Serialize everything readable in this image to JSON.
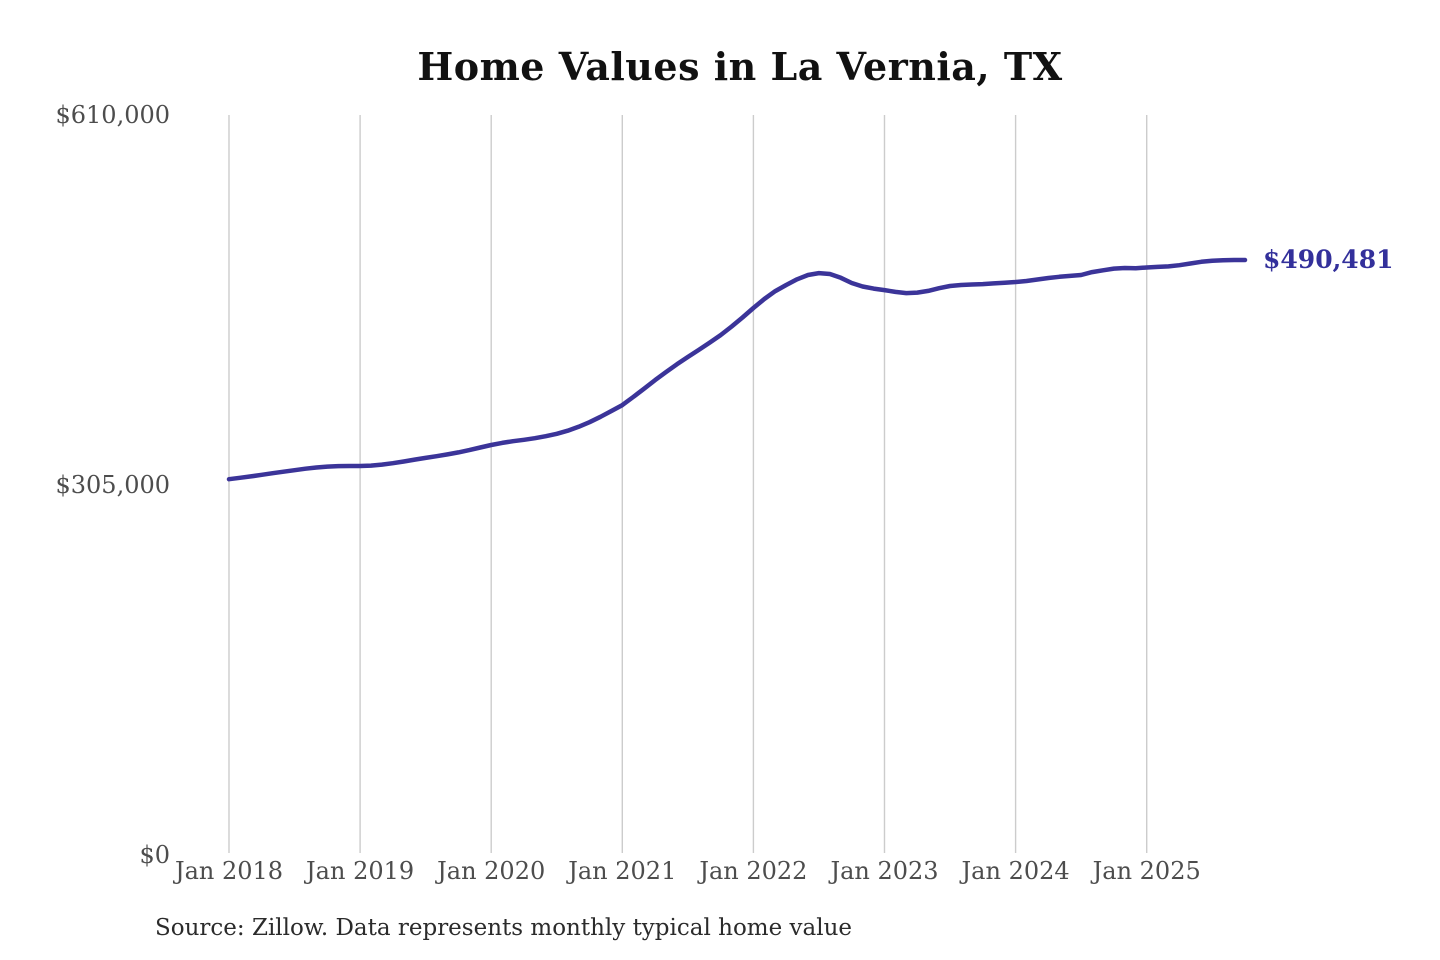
{
  "title": "Home Values in La Vernia, TX",
  "source": "Source: Zillow. Data represents monthly typical home value",
  "colors": {
    "line": "#3b3499",
    "value_label": "#33309b",
    "grid": "#cccccc",
    "axis_text": "#4d4d4d",
    "title_text": "#111111",
    "background": "#ffffff"
  },
  "chart_data": {
    "type": "line",
    "title": "Home Values in La Vernia, TX",
    "series_name": "Typical home value (monthly)",
    "end_label": "$490,481",
    "end_value": 490481,
    "ylim": [
      0,
      610000
    ],
    "grid": "vertical-only",
    "legend": "none",
    "y_tick_labels": [
      "$0",
      "$305,000",
      "$610,000"
    ],
    "y_tick_values": [
      0,
      305000,
      610000
    ],
    "x_tick_labels": [
      "Jan 2018",
      "Jan 2019",
      "Jan 2020",
      "Jan 2021",
      "Jan 2022",
      "Jan 2023",
      "Jan 2024",
      "Jan 2025"
    ],
    "x_tick_month_index": [
      0,
      12,
      24,
      36,
      48,
      60,
      72,
      84
    ],
    "x": [
      "2018-01",
      "2018-02",
      "2018-03",
      "2018-04",
      "2018-05",
      "2018-06",
      "2018-07",
      "2018-08",
      "2018-09",
      "2018-10",
      "2018-11",
      "2018-12",
      "2019-01",
      "2019-02",
      "2019-03",
      "2019-04",
      "2019-05",
      "2019-06",
      "2019-07",
      "2019-08",
      "2019-09",
      "2019-10",
      "2019-11",
      "2019-12",
      "2020-01",
      "2020-02",
      "2020-03",
      "2020-04",
      "2020-05",
      "2020-06",
      "2020-07",
      "2020-08",
      "2020-09",
      "2020-10",
      "2020-11",
      "2020-12",
      "2021-01",
      "2021-02",
      "2021-03",
      "2021-04",
      "2021-05",
      "2021-06",
      "2021-07",
      "2021-08",
      "2021-09",
      "2021-10",
      "2021-11",
      "2021-12",
      "2022-01",
      "2022-02",
      "2022-03",
      "2022-04",
      "2022-05",
      "2022-06",
      "2022-07",
      "2022-08",
      "2022-09",
      "2022-10",
      "2022-11",
      "2022-12",
      "2023-01",
      "2023-02",
      "2023-03",
      "2023-04",
      "2023-05",
      "2023-06",
      "2023-07",
      "2023-08",
      "2023-09",
      "2023-10",
      "2023-11",
      "2023-12",
      "2024-01",
      "2024-02",
      "2024-03",
      "2024-04",
      "2024-05",
      "2024-06",
      "2024-07",
      "2024-08",
      "2024-09",
      "2024-10",
      "2024-11",
      "2024-12",
      "2025-01",
      "2025-02",
      "2025-03",
      "2025-04",
      "2025-05",
      "2025-06",
      "2025-07",
      "2025-08",
      "2025-09",
      "2025-10"
    ],
    "values": [
      309800,
      310900,
      312100,
      313400,
      314700,
      316000,
      317200,
      318400,
      319400,
      320200,
      320600,
      320700,
      320700,
      321000,
      321800,
      323000,
      324400,
      325900,
      327300,
      328700,
      330200,
      331900,
      333800,
      335900,
      338000,
      339700,
      341100,
      342300,
      343600,
      345200,
      347200,
      349800,
      353000,
      356800,
      361200,
      366000,
      370900,
      377500,
      384400,
      391500,
      398100,
      404500,
      410500,
      416400,
      422400,
      428600,
      435600,
      443100,
      450900,
      458300,
      464800,
      469900,
      474600,
      478100,
      479700,
      478900,
      475800,
      471500,
      468600,
      466900,
      465700,
      464200,
      463200,
      463600,
      465000,
      467200,
      469000,
      469900,
      470300,
      470600,
      471200,
      471800,
      472300,
      473200,
      474400,
      475600,
      476600,
      477400,
      478100,
      480500,
      482000,
      483400,
      483900,
      483700,
      484300,
      484800,
      485200,
      486200,
      487600,
      489000,
      489900,
      490300,
      490450,
      490481
    ]
  }
}
